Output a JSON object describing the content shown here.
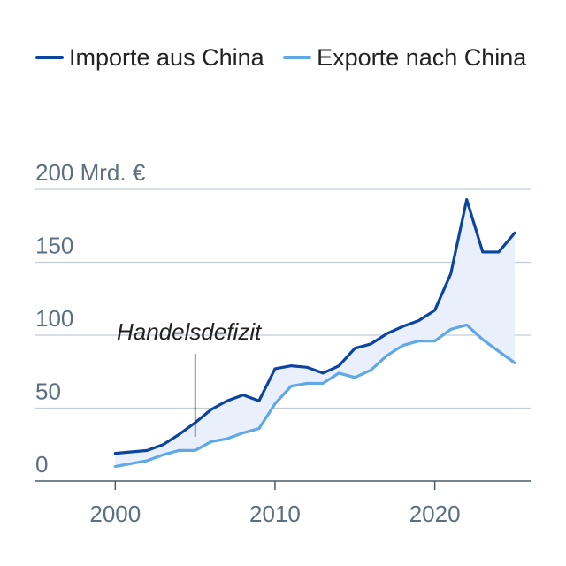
{
  "chart_data": {
    "type": "line",
    "title": "",
    "xlabel": "",
    "ylabel": "",
    "y_unit_label": "200 Mrd. €",
    "y_ticks": [
      "0",
      "50",
      "100",
      "150"
    ],
    "x_ticks": [
      2000,
      2010,
      2020
    ],
    "xlim": [
      1995,
      2026
    ],
    "ylim": [
      0,
      200
    ],
    "grid": true,
    "legend_placement": "top",
    "x": [
      2000,
      2001,
      2002,
      2003,
      2004,
      2005,
      2006,
      2007,
      2008,
      2009,
      2010,
      2011,
      2012,
      2013,
      2014,
      2015,
      2016,
      2017,
      2018,
      2019,
      2020,
      2021,
      2022,
      2023,
      2024,
      2025
    ],
    "series": [
      {
        "name": "Importe aus China",
        "color": "#0b45a0",
        "values": [
          19,
          20,
          21,
          25,
          32,
          40,
          49,
          55,
          59,
          55,
          77,
          79,
          78,
          74,
          79,
          91,
          94,
          101,
          106,
          110,
          117,
          142,
          193,
          157,
          157,
          170
        ]
      },
      {
        "name": "Exporte nach China",
        "color": "#5fa8e8",
        "values": [
          10,
          12,
          14,
          18,
          21,
          21,
          27,
          29,
          33,
          36,
          53,
          65,
          67,
          67,
          74,
          71,
          76,
          86,
          93,
          96,
          96,
          104,
          107,
          97,
          89,
          81
        ]
      }
    ],
    "fill_color": "#e9f0fb",
    "annotation": {
      "text": "Handelsdefizit",
      "x": 2005
    }
  }
}
